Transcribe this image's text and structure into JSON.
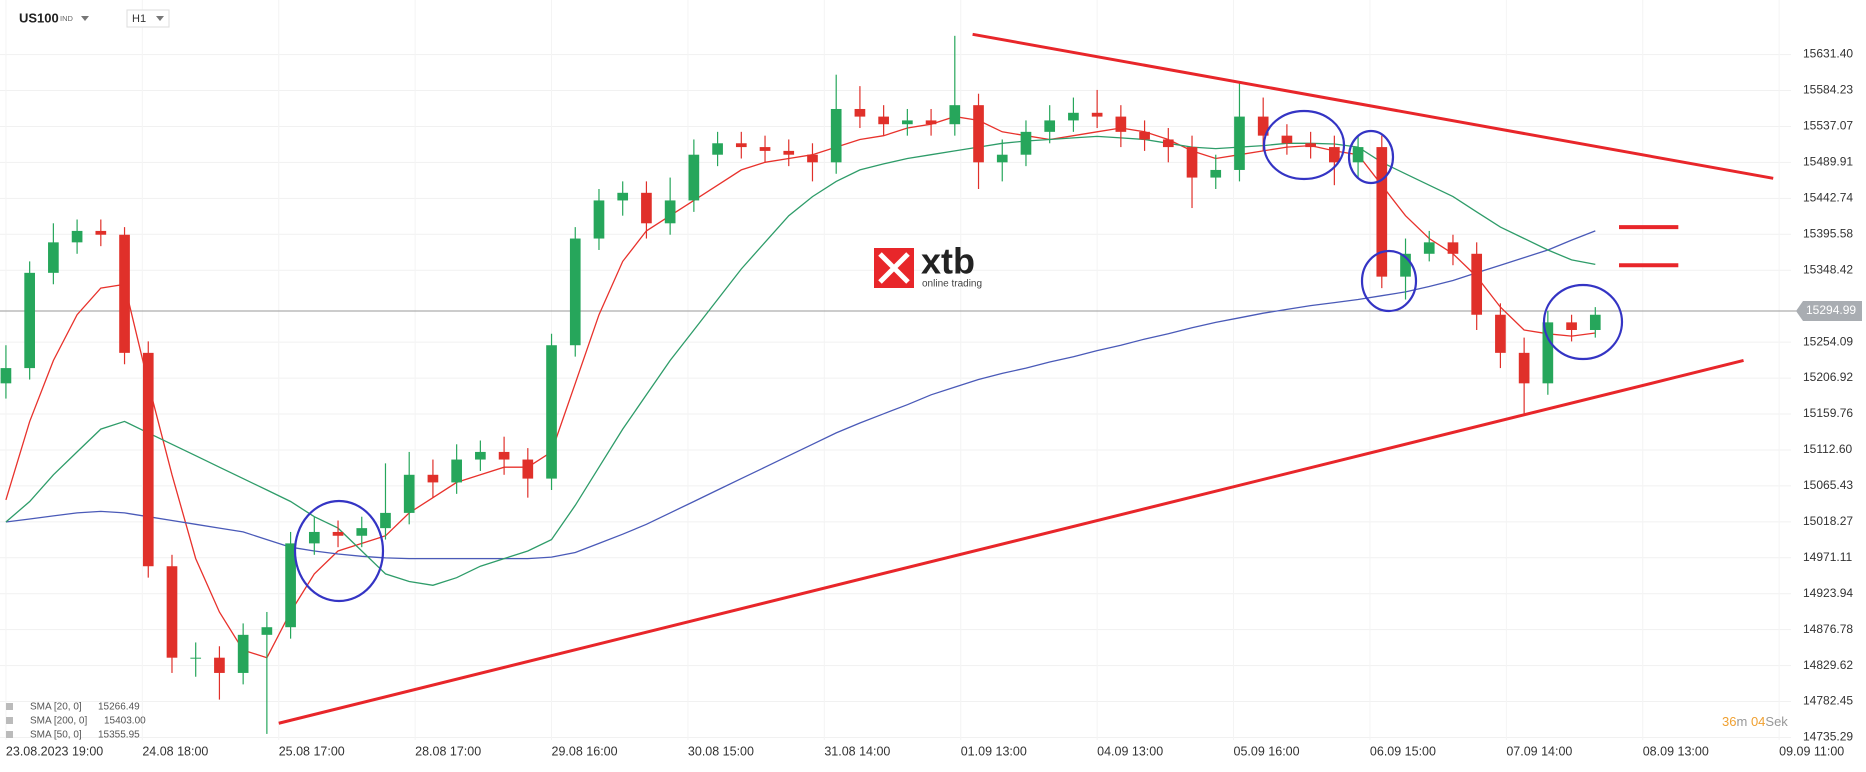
{
  "chart_data": {
    "type": "candlestick",
    "symbol": "US100",
    "symbol_type": "IND",
    "timeframe": "H1",
    "up_color": "#26a65b",
    "down_color": "#e0302a",
    "x": [
      0,
      4,
      8,
      12,
      16,
      20,
      24,
      28,
      32,
      36,
      40,
      44,
      48,
      52,
      56,
      60,
      64,
      68,
      72,
      76,
      80,
      84,
      88,
      92,
      96,
      100,
      104,
      108,
      112,
      116,
      120,
      124,
      128,
      132,
      136,
      140,
      144,
      148,
      152,
      156,
      160,
      164,
      168,
      172,
      176,
      180,
      184,
      188,
      192,
      196,
      200,
      204,
      208,
      212,
      216,
      220,
      224,
      228,
      232,
      236,
      240,
      244,
      248,
      252,
      256,
      260,
      264,
      268
    ],
    "open": [
      15200,
      15220,
      15345,
      15385,
      15400,
      15395,
      15240,
      14960,
      14840,
      14840,
      14820,
      14870,
      14880,
      14990,
      15005,
      15000,
      15010,
      15030,
      15080,
      15070,
      15100,
      15110,
      15100,
      15075,
      15250,
      15390,
      15440,
      15450,
      15410,
      15440,
      15500,
      15515,
      15510,
      15505,
      15500,
      15490,
      15560,
      15550,
      15540,
      15545,
      15540,
      15565,
      15490,
      15500,
      15530,
      15545,
      15555,
      15550,
      15530,
      15520,
      15510,
      15470,
      15480,
      15550,
      15525,
      15515,
      15510,
      15490,
      15510,
      15340,
      15370,
      15385,
      15370,
      15290,
      15240,
      15200,
      15280,
      15270
    ],
    "high": [
      15250,
      15360,
      15410,
      15415,
      15415,
      15405,
      15255,
      14975,
      14860,
      14855,
      14885,
      14900,
      15005,
      15025,
      15020,
      15025,
      15095,
      15110,
      15100,
      15120,
      15125,
      15130,
      15115,
      15265,
      15405,
      15455,
      15465,
      15465,
      15470,
      15520,
      15530,
      15530,
      15525,
      15520,
      15515,
      15605,
      15590,
      15565,
      15560,
      15560,
      15656,
      15580,
      15520,
      15545,
      15565,
      15575,
      15585,
      15565,
      15545,
      15535,
      15525,
      15500,
      15595,
      15575,
      15540,
      15530,
      15525,
      15525,
      15525,
      15390,
      15400,
      15395,
      15385,
      15305,
      15260,
      15295,
      15290,
      15300
    ],
    "low": [
      15180,
      15205,
      15330,
      15370,
      15380,
      15225,
      14945,
      14820,
      14815,
      14785,
      14805,
      14740,
      14865,
      14975,
      14985,
      14985,
      14995,
      15015,
      15050,
      15055,
      15085,
      15080,
      15050,
      15060,
      15235,
      15375,
      15420,
      15390,
      15395,
      15425,
      15485,
      15495,
      15490,
      15485,
      15465,
      15475,
      15535,
      15525,
      15525,
      15525,
      15525,
      15455,
      15465,
      15485,
      15515,
      15530,
      15535,
      15510,
      15505,
      15490,
      15430,
      15455,
      15465,
      15505,
      15500,
      15495,
      15460,
      15470,
      15325,
      15310,
      15360,
      15355,
      15270,
      15220,
      15160,
      15185,
      15255,
      15260
    ],
    "close": [
      15220,
      15345,
      15385,
      15400,
      15395,
      15240,
      14960,
      14840,
      14840,
      14820,
      14870,
      14880,
      14990,
      15005,
      15000,
      15010,
      15030,
      15080,
      15070,
      15100,
      15110,
      15100,
      15075,
      15250,
      15390,
      15440,
      15450,
      15410,
      15440,
      15500,
      15515,
      15510,
      15505,
      15500,
      15490,
      15560,
      15550,
      15540,
      15545,
      15540,
      15565,
      15490,
      15500,
      15530,
      15545,
      15555,
      15550,
      15530,
      15520,
      15510,
      15470,
      15480,
      15550,
      15525,
      15515,
      15510,
      15490,
      15510,
      15340,
      15370,
      15385,
      15370,
      15290,
      15240,
      15200,
      15280,
      15270,
      15290
    ],
    "series": [
      {
        "name": "SMA [20, 0]",
        "last": "15266.49",
        "color": "#e8322c",
        "values": [
          15047,
          15150,
          15230,
          15290,
          15325,
          15330,
          15200,
          15080,
          14970,
          14900,
          14850,
          14840,
          14900,
          14950,
          14980,
          14990,
          15000,
          15030,
          15050,
          15070,
          15080,
          15090,
          15090,
          15110,
          15200,
          15290,
          15360,
          15400,
          15420,
          15440,
          15460,
          15480,
          15490,
          15495,
          15500,
          15510,
          15520,
          15525,
          15535,
          15540,
          15550,
          15545,
          15530,
          15525,
          15520,
          15525,
          15530,
          15535,
          15530,
          15520,
          15505,
          15495,
          15500,
          15505,
          15510,
          15512,
          15505,
          15500,
          15460,
          15420,
          15390,
          15370,
          15340,
          15300,
          15270,
          15265,
          15262,
          15266
        ]
      },
      {
        "name": "SMA [200, 0]",
        "last": "15403.00",
        "color": "#4a5ab8",
        "values": [
          15018,
          15022,
          15026,
          15030,
          15032,
          15030,
          15025,
          15020,
          15015,
          15010,
          15005,
          14995,
          14985,
          14980,
          14976,
          14973,
          14971,
          14970,
          14970,
          14970,
          14970,
          14970,
          14970,
          14972,
          14978,
          14990,
          15002,
          15015,
          15030,
          15045,
          15060,
          15075,
          15090,
          15105,
          15120,
          15135,
          15148,
          15160,
          15172,
          15185,
          15195,
          15205,
          15213,
          15220,
          15228,
          15235,
          15243,
          15250,
          15258,
          15265,
          15273,
          15280,
          15286,
          15292,
          15297,
          15302,
          15306,
          15310,
          15315,
          15320,
          15327,
          15335,
          15345,
          15355,
          15365,
          15375,
          15388,
          15400
        ]
      },
      {
        "name": "SMA [50, 0]",
        "last": "15355.95",
        "color": "#2e9c69",
        "values": [
          15018,
          15045,
          15080,
          15110,
          15140,
          15150,
          15135,
          15120,
          15105,
          15090,
          15075,
          15060,
          15045,
          15025,
          15010,
          14980,
          14950,
          14940,
          14935,
          14945,
          14960,
          14970,
          14980,
          14995,
          15040,
          15090,
          15140,
          15185,
          15230,
          15270,
          15310,
          15350,
          15385,
          15420,
          15445,
          15465,
          15480,
          15488,
          15495,
          15500,
          15505,
          15510,
          15515,
          15518,
          15520,
          15522,
          15524,
          15522,
          15520,
          15515,
          15510,
          15508,
          15510,
          15512,
          15515,
          15515,
          15514,
          15510,
          15490,
          15475,
          15460,
          15445,
          15425,
          15405,
          15390,
          15375,
          15362,
          15356
        ]
      }
    ],
    "xlim": [
      -1,
      301
    ],
    "xticks": [
      {
        "value": 0,
        "label": "23.08.2023  19:00"
      },
      {
        "value": 23,
        "label": "24.08  18:00"
      },
      {
        "value": 46,
        "label": "25.08  17:00"
      },
      {
        "value": 69,
        "label": "28.08  17:00"
      },
      {
        "value": 92,
        "label": "29.08  16:00"
      },
      {
        "value": 115,
        "label": "30.08  15:00"
      },
      {
        "value": 138,
        "label": "31.08  14:00"
      },
      {
        "value": 161,
        "label": "01.09  13:00"
      },
      {
        "value": 184,
        "label": "04.09  13:00"
      },
      {
        "value": 207,
        "label": "05.09  16:00"
      },
      {
        "value": 230,
        "label": "06.09  15:00"
      },
      {
        "value": 253,
        "label": "07.09  14:00"
      },
      {
        "value": 276,
        "label": "08.09  13:00"
      },
      {
        "value": 299,
        "label": "09.09  11:00"
      }
    ],
    "ylim": [
      14732,
      15703
    ],
    "yticks": [
      {
        "value": 15631.4,
        "label": "15631.40"
      },
      15584.23,
      15537.07,
      15489.91,
      15442.74,
      15395.58,
      15348.42,
      15254.09,
      15206.92,
      15159.76,
      {
        "value": 15112.6,
        "label": "15112.60"
      },
      15065.43,
      15018.27,
      14971.11,
      14923.94,
      14876.78,
      14829.62,
      14782.45,
      14735.29
    ],
    "grid": true,
    "current_price": 15294.99,
    "trendlines": [
      {
        "x": [
          163,
          298
        ],
        "y": [
          15658,
          15469
        ],
        "color": "#e8262a"
      },
      {
        "x": [
          46,
          293
        ],
        "y": [
          14754,
          15230
        ],
        "color": "#e8262a"
      }
    ],
    "target_lines": [
      {
        "x": [
          272,
          282
        ],
        "y": 15405
      },
      {
        "x": [
          272,
          282
        ],
        "y": 15355
      }
    ],
    "logo": {
      "name": "xtb",
      "tagline": "online trading"
    },
    "timer": {
      "minutes": "36",
      "minutes_unit": "m",
      "seconds": "04",
      "seconds_unit": "Sek"
    }
  }
}
